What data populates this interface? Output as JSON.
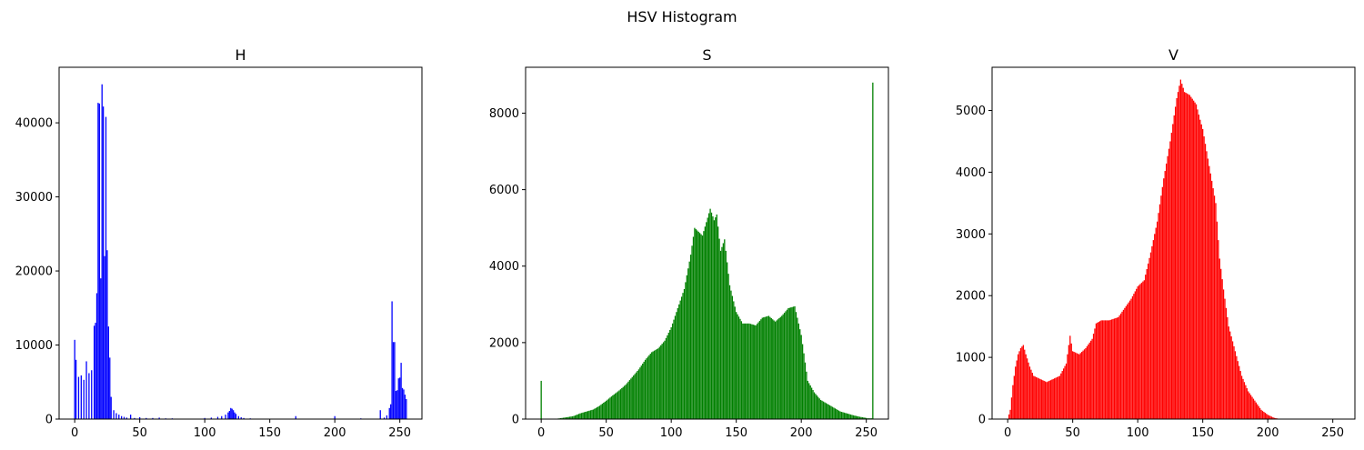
{
  "figure_title": "HSV Histogram",
  "chart_data": [
    {
      "type": "bar",
      "title": "H",
      "color": "#0000ff",
      "xlabel": "",
      "ylabel": "",
      "xlim": [
        -12,
        267
      ],
      "ylim": [
        0,
        47500
      ],
      "xticks": [
        0,
        50,
        100,
        150,
        200,
        250
      ],
      "yticks": [
        0,
        10000,
        20000,
        30000,
        40000
      ],
      "grid": false,
      "points": [
        [
          0,
          10700
        ],
        [
          1,
          8000
        ],
        [
          3,
          5700
        ],
        [
          5,
          5900
        ],
        [
          7,
          5300
        ],
        [
          9,
          7800
        ],
        [
          11,
          6200
        ],
        [
          13,
          6600
        ],
        [
          15,
          12600
        ],
        [
          16,
          13000
        ],
        [
          17,
          17000
        ],
        [
          18,
          42700
        ],
        [
          19,
          42600
        ],
        [
          20,
          19000
        ],
        [
          21,
          45200
        ],
        [
          22,
          42200
        ],
        [
          23,
          22000
        ],
        [
          24,
          40800
        ],
        [
          25,
          22800
        ],
        [
          26,
          12500
        ],
        [
          27,
          8300
        ],
        [
          28,
          3000
        ],
        [
          30,
          1200
        ],
        [
          32,
          800
        ],
        [
          34,
          600
        ],
        [
          36,
          400
        ],
        [
          38,
          300
        ],
        [
          40,
          200
        ],
        [
          43,
          600
        ],
        [
          46,
          150
        ],
        [
          50,
          250
        ],
        [
          55,
          150
        ],
        [
          60,
          150
        ],
        [
          65,
          200
        ],
        [
          70,
          100
        ],
        [
          75,
          100
        ],
        [
          80,
          50
        ],
        [
          90,
          50
        ],
        [
          100,
          150
        ],
        [
          105,
          200
        ],
        [
          110,
          300
        ],
        [
          113,
          400
        ],
        [
          116,
          600
        ],
        [
          118,
          900
        ],
        [
          119,
          1100
        ],
        [
          120,
          1500
        ],
        [
          121,
          1400
        ],
        [
          122,
          1200
        ],
        [
          123,
          900
        ],
        [
          124,
          700
        ],
        [
          126,
          400
        ],
        [
          128,
          250
        ],
        [
          130,
          150
        ],
        [
          135,
          100
        ],
        [
          140,
          50
        ],
        [
          150,
          50
        ],
        [
          160,
          50
        ],
        [
          170,
          400
        ],
        [
          180,
          50
        ],
        [
          190,
          50
        ],
        [
          200,
          400
        ],
        [
          210,
          50
        ],
        [
          220,
          100
        ],
        [
          230,
          50
        ],
        [
          235,
          1200
        ],
        [
          238,
          200
        ],
        [
          240,
          500
        ],
        [
          242,
          1500
        ],
        [
          243,
          2000
        ],
        [
          244,
          15900
        ],
        [
          245,
          10400
        ],
        [
          246,
          10400
        ],
        [
          247,
          3800
        ],
        [
          248,
          3900
        ],
        [
          249,
          5500
        ],
        [
          250,
          5600
        ],
        [
          251,
          7600
        ],
        [
          252,
          4200
        ],
        [
          253,
          4000
        ],
        [
          254,
          3300
        ],
        [
          255,
          2700
        ]
      ]
    },
    {
      "type": "bar",
      "title": "S",
      "color": "#008000",
      "xlabel": "",
      "ylabel": "",
      "xlim": [
        -12,
        267
      ],
      "ylim": [
        0,
        9200
      ],
      "xticks": [
        0,
        50,
        100,
        150,
        200,
        250
      ],
      "yticks": [
        0,
        2000,
        4000,
        6000,
        8000
      ],
      "grid": false,
      "points": [
        [
          0,
          1000
        ],
        [
          10,
          0
        ],
        [
          14,
          20
        ],
        [
          20,
          50
        ],
        [
          25,
          80
        ],
        [
          30,
          150
        ],
        [
          35,
          200
        ],
        [
          40,
          250
        ],
        [
          45,
          350
        ],
        [
          50,
          480
        ],
        [
          55,
          620
        ],
        [
          60,
          750
        ],
        [
          65,
          900
        ],
        [
          70,
          1100
        ],
        [
          75,
          1300
        ],
        [
          80,
          1550
        ],
        [
          85,
          1750
        ],
        [
          90,
          1850
        ],
        [
          95,
          2050
        ],
        [
          100,
          2400
        ],
        [
          105,
          2900
        ],
        [
          110,
          3400
        ],
        [
          115,
          4300
        ],
        [
          118,
          5000
        ],
        [
          121,
          4900
        ],
        [
          124,
          4800
        ],
        [
          127,
          5150
        ],
        [
          130,
          5500
        ],
        [
          133,
          5200
        ],
        [
          135,
          5350
        ],
        [
          138,
          4400
        ],
        [
          141,
          4700
        ],
        [
          145,
          3500
        ],
        [
          150,
          2800
        ],
        [
          155,
          2500
        ],
        [
          160,
          2500
        ],
        [
          165,
          2450
        ],
        [
          170,
          2650
        ],
        [
          175,
          2700
        ],
        [
          180,
          2550
        ],
        [
          185,
          2700
        ],
        [
          190,
          2900
        ],
        [
          195,
          2950
        ],
        [
          200,
          2200
        ],
        [
          205,
          1000
        ],
        [
          210,
          700
        ],
        [
          215,
          500
        ],
        [
          220,
          400
        ],
        [
          225,
          300
        ],
        [
          230,
          200
        ],
        [
          235,
          150
        ],
        [
          240,
          100
        ],
        [
          245,
          60
        ],
        [
          250,
          30
        ],
        [
          255,
          8800
        ]
      ]
    },
    {
      "type": "bar",
      "title": "V",
      "color": "#ff0000",
      "xlabel": "",
      "ylabel": "",
      "xlim": [
        -12,
        267
      ],
      "ylim": [
        0,
        5700
      ],
      "xticks": [
        0,
        50,
        100,
        150,
        200,
        250
      ],
      "yticks": [
        0,
        1000,
        2000,
        3000,
        4000,
        5000
      ],
      "grid": false,
      "points": [
        [
          0,
          0
        ],
        [
          2,
          150
        ],
        [
          4,
          550
        ],
        [
          6,
          850
        ],
        [
          8,
          1050
        ],
        [
          10,
          1150
        ],
        [
          12,
          1200
        ],
        [
          14,
          1050
        ],
        [
          17,
          850
        ],
        [
          20,
          700
        ],
        [
          25,
          650
        ],
        [
          30,
          600
        ],
        [
          35,
          650
        ],
        [
          40,
          700
        ],
        [
          45,
          900
        ],
        [
          48,
          1350
        ],
        [
          50,
          1100
        ],
        [
          55,
          1050
        ],
        [
          60,
          1150
        ],
        [
          65,
          1300
        ],
        [
          68,
          1550
        ],
        [
          72,
          1600
        ],
        [
          78,
          1600
        ],
        [
          85,
          1650
        ],
        [
          90,
          1800
        ],
        [
          95,
          1950
        ],
        [
          100,
          2150
        ],
        [
          105,
          2250
        ],
        [
          110,
          2700
        ],
        [
          115,
          3200
        ],
        [
          120,
          3900
        ],
        [
          125,
          4500
        ],
        [
          130,
          5200
        ],
        [
          133,
          5500
        ],
        [
          136,
          5300
        ],
        [
          140,
          5250
        ],
        [
          145,
          5100
        ],
        [
          148,
          4850
        ],
        [
          150,
          4700
        ],
        [
          155,
          4100
        ],
        [
          160,
          3500
        ],
        [
          163,
          2600
        ],
        [
          166,
          2100
        ],
        [
          170,
          1500
        ],
        [
          175,
          1100
        ],
        [
          180,
          700
        ],
        [
          185,
          450
        ],
        [
          190,
          300
        ],
        [
          195,
          150
        ],
        [
          200,
          70
        ],
        [
          205,
          20
        ],
        [
          210,
          0
        ],
        [
          255,
          0
        ]
      ]
    }
  ]
}
